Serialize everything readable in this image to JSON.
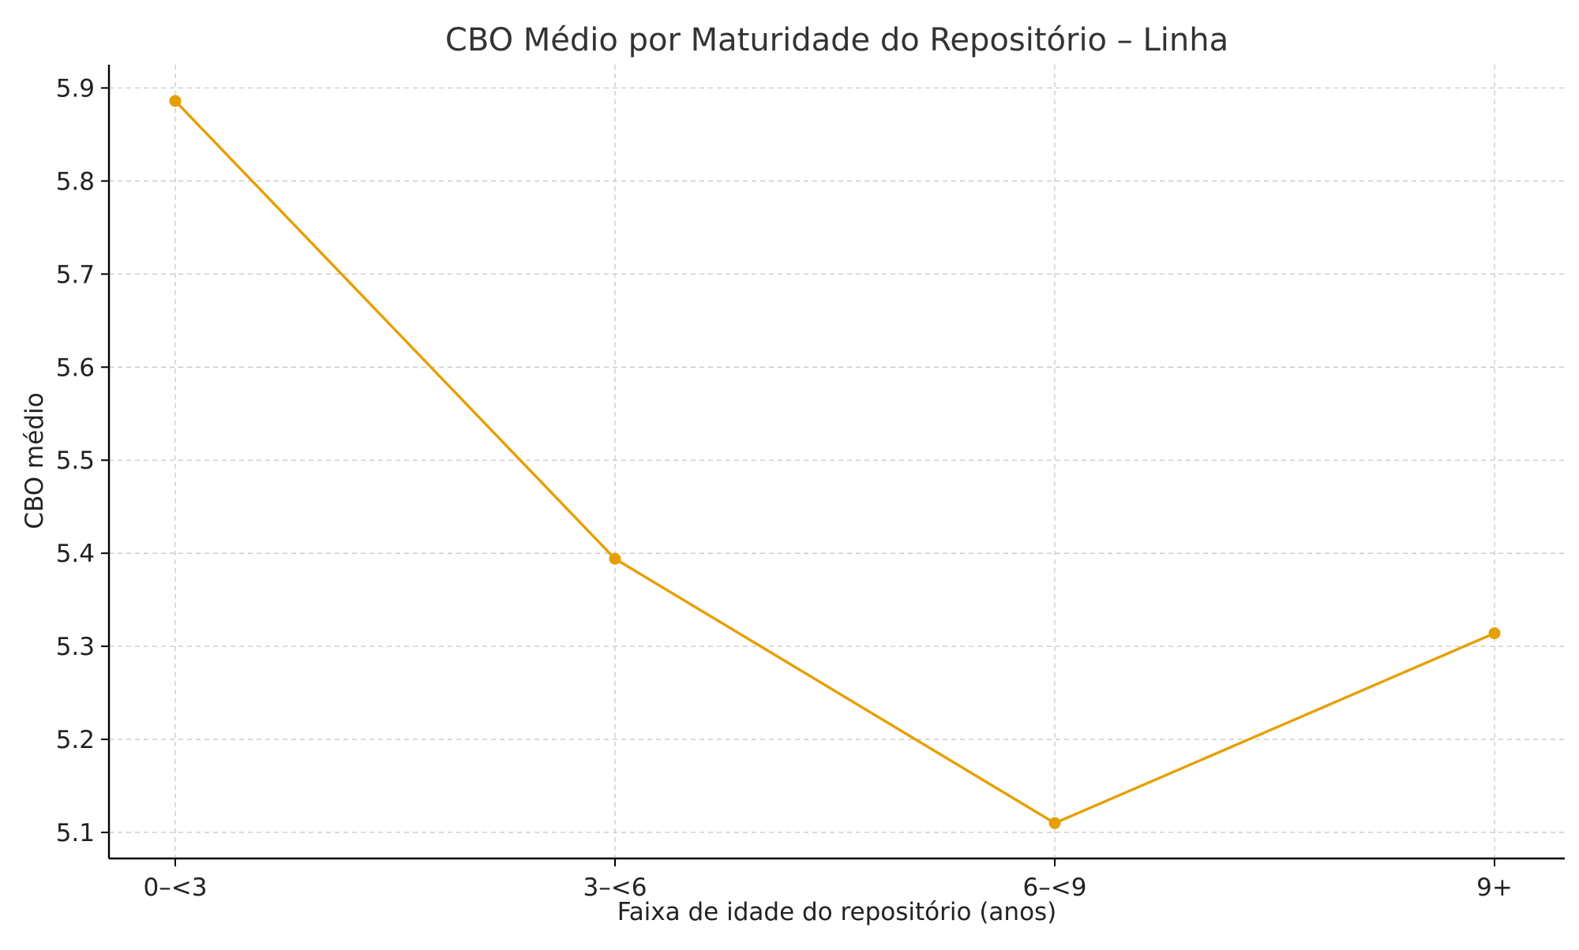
{
  "chart_data": {
    "type": "line",
    "title": "CBO Médio por Maturidade do Repositório – Linha",
    "xlabel": "Faixa de idade do repositório (anos)",
    "ylabel": "CBO médio",
    "categories": [
      "0–<3",
      "3–<6",
      "6–<9",
      "9+"
    ],
    "series": [
      {
        "values": [
          5.886,
          5.394,
          5.11,
          5.314
        ],
        "color": "#E69F00",
        "marker": "circle"
      }
    ],
    "ylim": [
      5.072,
      5.925
    ],
    "yticks": [
      5.1,
      5.2,
      5.3,
      5.4,
      5.5,
      5.6,
      5.7,
      5.8,
      5.9
    ],
    "ytick_labels": [
      "5.1",
      "5.2",
      "5.3",
      "5.4",
      "5.5",
      "5.6",
      "5.7",
      "5.8",
      "5.9"
    ],
    "grid": true,
    "legend": "none"
  }
}
